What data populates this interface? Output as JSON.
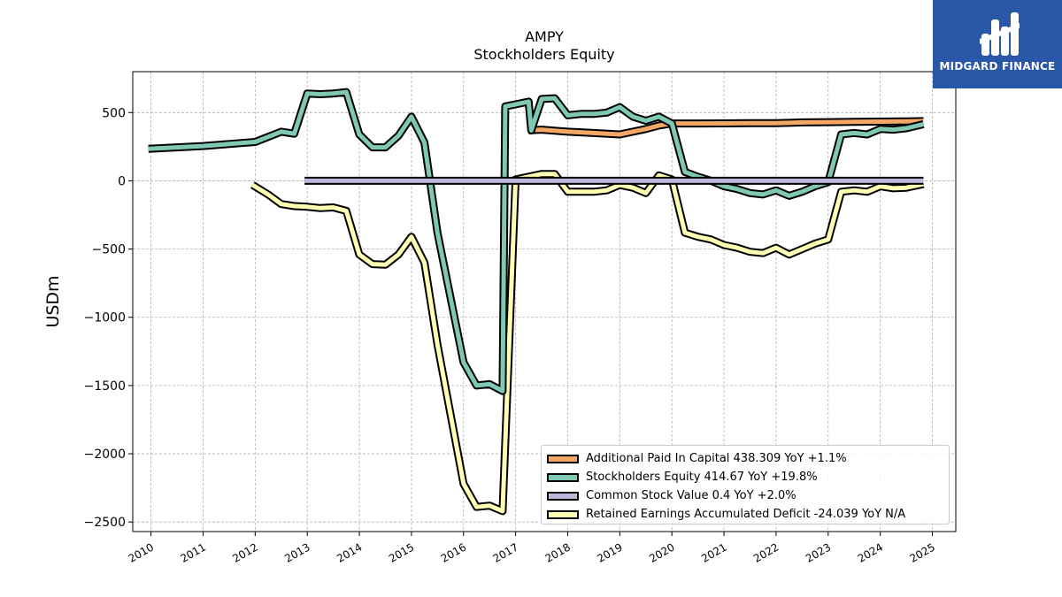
{
  "brand": {
    "name": "MIDGARD FINANCE",
    "logo_icon": "mf-logo-icon",
    "background": "#2b57a8"
  },
  "chart_data": {
    "type": "line",
    "title": "AMPY",
    "subtitle": "Stockholders  Equity",
    "ylabel": "USDm",
    "xlabel": "",
    "xlim": [
      2009.65,
      2025.45
    ],
    "ylim": [
      -2570,
      800
    ],
    "grid": true,
    "legend_placement": "lower-right",
    "x_ticks": [
      2010,
      2011,
      2012,
      2013,
      2014,
      2015,
      2016,
      2017,
      2018,
      2019,
      2020,
      2021,
      2022,
      2023,
      2024,
      2025
    ],
    "x_tick_labels": [
      "2010",
      "2011",
      "2012",
      "2013",
      "2014",
      "2015",
      "2016",
      "2017",
      "2018",
      "2019",
      "2020",
      "2021",
      "2022",
      "2023",
      "2024",
      "2025"
    ],
    "y_ticks": [
      500,
      0,
      -500,
      -1000,
      -1500,
      -2000,
      -2500
    ],
    "y_tick_labels": [
      "500",
      "0",
      "−500",
      "−1000",
      "−1500",
      "−2000",
      "−2500"
    ],
    "series": [
      {
        "name": "Additional Paid In Capital",
        "legend": "Additional Paid In Capital  438.309 YoY +1.1%",
        "color": "#f4a765",
        "x": [
          2017.25,
          2017.5,
          2018.0,
          2018.5,
          2019.0,
          2019.5,
          2019.75,
          2020.0,
          2020.5,
          2021.0,
          2021.5,
          2022.0,
          2022.25,
          2022.5,
          2023.0,
          2023.5,
          2024.0,
          2024.5,
          2024.83
        ],
        "y": [
          370,
          375,
          360,
          350,
          340,
          380,
          405,
          420,
          420,
          421,
          422,
          423,
          425,
          428,
          430,
          432,
          434,
          436,
          438
        ]
      },
      {
        "name": "Stockholders Equity",
        "legend": "Stockholders Equity  414.67 YoY +19.8%",
        "color": "#7ec8b4",
        "x": [
          2009.95,
          2010.5,
          2011.0,
          2011.5,
          2012.0,
          2012.5,
          2012.75,
          2013.0,
          2013.25,
          2013.5,
          2013.75,
          2014.0,
          2014.25,
          2014.5,
          2014.75,
          2015.0,
          2015.25,
          2015.5,
          2016.0,
          2016.25,
          2016.5,
          2016.75,
          2016.8,
          2017.0,
          2017.25,
          2017.3,
          2017.5,
          2017.75,
          2018.0,
          2018.25,
          2018.5,
          2018.75,
          2019.0,
          2019.25,
          2019.5,
          2019.75,
          2020.0,
          2020.25,
          2020.5,
          2020.75,
          2021.0,
          2021.25,
          2021.5,
          2021.75,
          2022.0,
          2022.25,
          2022.5,
          2022.75,
          2023.0,
          2023.25,
          2023.5,
          2023.75,
          2024.0,
          2024.25,
          2024.5,
          2024.83
        ],
        "y": [
          235,
          245,
          255,
          270,
          285,
          360,
          345,
          640,
          635,
          640,
          650,
          340,
          245,
          245,
          330,
          470,
          280,
          -380,
          -1330,
          -1500,
          -1490,
          -1540,
          545,
          560,
          580,
          370,
          600,
          605,
          480,
          490,
          490,
          500,
          540,
          470,
          440,
          470,
          420,
          65,
          30,
          0,
          -40,
          -60,
          -90,
          -100,
          -70,
          -110,
          -80,
          -40,
          -10,
          340,
          350,
          340,
          380,
          375,
          385,
          415
        ]
      },
      {
        "name": "Common Stock Value",
        "legend": "Common Stock Value  0.4 YoY +2.0%",
        "color": "#bab7d8",
        "x": [
          2012.95,
          2024.83
        ],
        "y": [
          0.4,
          0.4
        ]
      },
      {
        "name": "Retained Earnings Accumulated Deficit",
        "legend": "Retained Earnings Accumulated Deficit  -24.039 YoY N/A",
        "color": "#ffffb3",
        "x": [
          2011.95,
          2012.25,
          2012.5,
          2012.75,
          2013.0,
          2013.25,
          2013.5,
          2013.75,
          2014.0,
          2014.25,
          2014.5,
          2014.75,
          2015.0,
          2015.25,
          2015.5,
          2016.0,
          2016.25,
          2016.5,
          2016.75,
          2017.0,
          2017.25,
          2017.5,
          2017.75,
          2018.0,
          2018.25,
          2018.5,
          2018.75,
          2019.0,
          2019.25,
          2019.5,
          2019.75,
          2020.0,
          2020.25,
          2020.5,
          2020.75,
          2021.0,
          2021.25,
          2021.5,
          2021.75,
          2022.0,
          2022.25,
          2022.5,
          2022.75,
          2023.0,
          2023.25,
          2023.5,
          2023.75,
          2024.0,
          2024.25,
          2024.5,
          2024.83
        ],
        "y": [
          -30,
          -100,
          -170,
          -185,
          -190,
          -200,
          -195,
          -220,
          -540,
          -610,
          -615,
          -540,
          -410,
          -600,
          -1200,
          -2220,
          -2390,
          -2380,
          -2420,
          10,
          30,
          50,
          50,
          -80,
          -80,
          -80,
          -70,
          -30,
          -50,
          -90,
          40,
          10,
          -380,
          -410,
          -430,
          -470,
          -490,
          -520,
          -530,
          -490,
          -540,
          -500,
          -460,
          -430,
          -80,
          -70,
          -80,
          -40,
          -55,
          -50,
          -24
        ]
      }
    ]
  }
}
